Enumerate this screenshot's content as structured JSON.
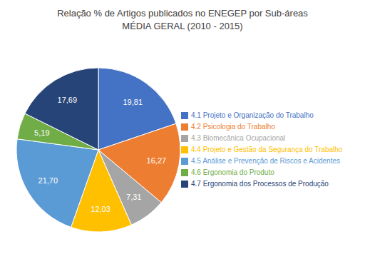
{
  "chart_data": {
    "type": "pie",
    "title": "Relação % de Artigos publicados no ENEGEP por Sub-áreas\nMÉDIA GERAL (2010 - 2015)",
    "categories": [
      "4.1 Projeto e Organização do Trabalho",
      "4.2 Psicologia do Trabalho",
      "4.3 Biomecânica Ocupacional",
      "4.4 Projeto e Gestão da Segurança do Trabalho",
      "4.5 Análise e Prevenção de Riscos e Acidentes",
      "4.6 Ergonomia do Produto",
      "4.7 Ergonomia dos Processos de Produção"
    ],
    "values": [
      19.81,
      16.27,
      7.31,
      12.03,
      21.7,
      5.19,
      17.69
    ],
    "value_labels": [
      "19,81",
      "16,27",
      "7,31",
      "12,03",
      "21,70",
      "5,19",
      "17,69"
    ],
    "colors": [
      "#4472C4",
      "#ED7D31",
      "#A5A5A5",
      "#FFC000",
      "#5B9BD5",
      "#70AD47",
      "#264478"
    ],
    "data_labels": true,
    "legend": "right"
  }
}
